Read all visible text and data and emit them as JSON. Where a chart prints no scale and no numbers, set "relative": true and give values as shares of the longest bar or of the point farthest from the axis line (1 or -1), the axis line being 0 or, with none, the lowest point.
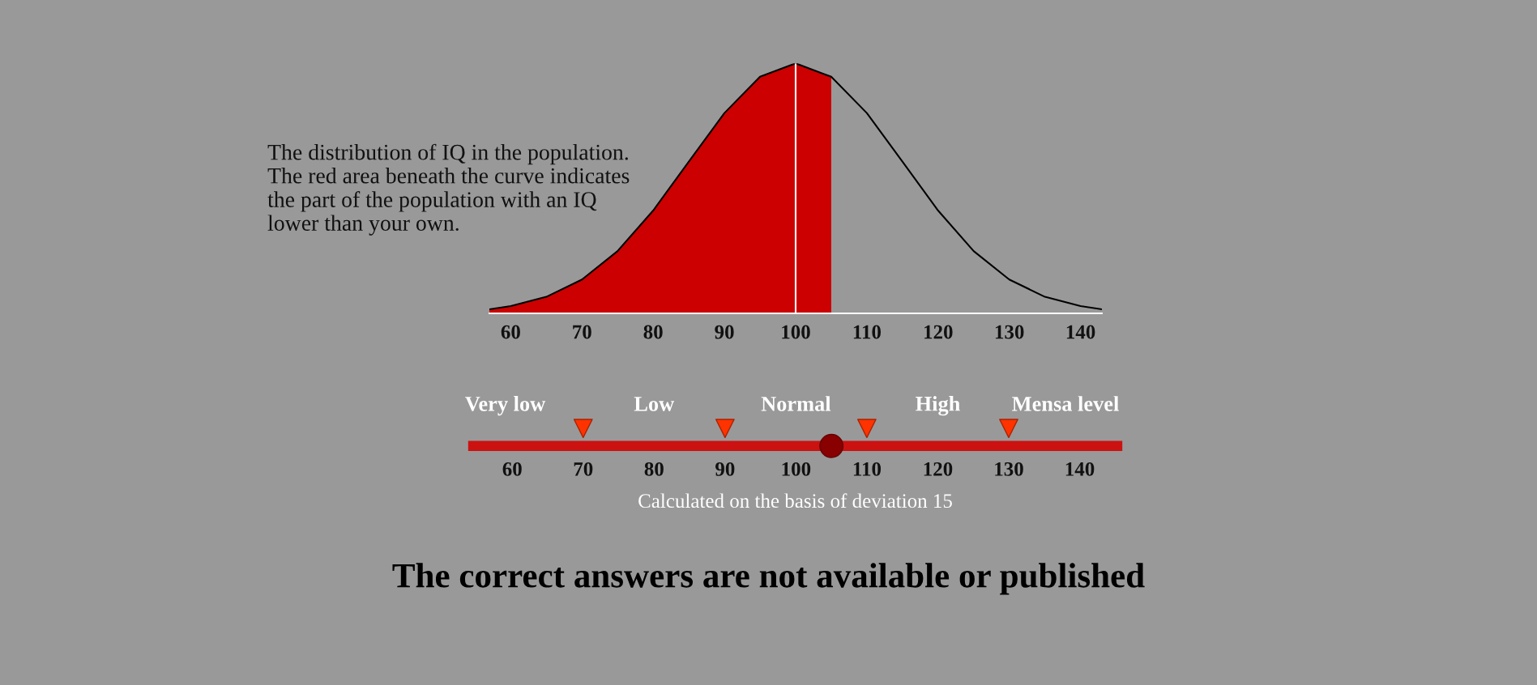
{
  "chart_data": {
    "type": "area",
    "relative": true,
    "xlim": [
      57,
      143
    ],
    "xticks": [
      60,
      70,
      80,
      90,
      100,
      110,
      120,
      130,
      140
    ],
    "tick_labels": "x",
    "marker": "none",
    "x2lim": [
      54.5,
      145.3
    ],
    "x2ticks": [
      60,
      70,
      80,
      90,
      100,
      110,
      120,
      130,
      140
    ],
    "x2label": "Calculated on the basis of deviation 15",
    "series": [
      {
        "color": "#cc0000",
        "x": [
          57,
          60,
          65,
          70,
          75,
          80,
          85,
          90,
          95,
          100,
          105
        ],
        "values": [
          0.016,
          0.029,
          0.066,
          0.135,
          0.249,
          0.411,
          0.607,
          0.801,
          0.946,
          1,
          0.946
        ]
      },
      {
        "type": "line",
        "color": "#000000",
        "x": [
          57,
          60,
          65,
          70,
          75,
          80,
          85,
          90,
          95,
          100,
          105,
          110,
          115,
          120,
          125,
          130,
          135,
          140,
          143
        ],
        "values": [
          0.016,
          0.029,
          0.066,
          0.135,
          0.249,
          0.411,
          0.607,
          0.801,
          0.946,
          1,
          0.946,
          0.801,
          0.607,
          0.411,
          0.249,
          0.135,
          0.066,
          0.029,
          0.016
        ]
      }
    ],
    "ref_lines": [
      {
        "axis": "x",
        "value": 100,
        "color": "#ffffff"
      }
    ],
    "annotations": [
      "The distribution of IQ in the population.\nThe red area beneath the curve indicates\nthe part of the population with an IQ\nlower than your own.",
      "Very low",
      "Low",
      "Normal",
      "High",
      "Mensa level",
      "The correct answers are not available or published"
    ]
  }
}
